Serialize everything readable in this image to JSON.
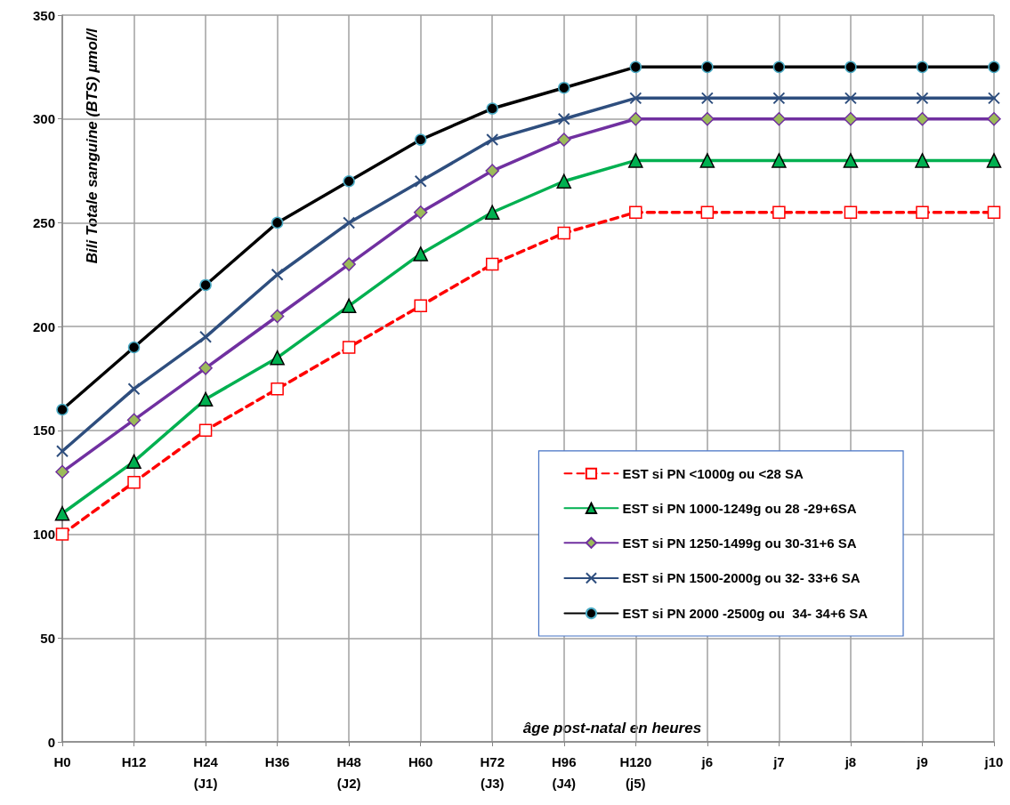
{
  "chart_data": {
    "type": "line",
    "ylabel": "Bili Totale sanguine (BTS) µmol/l",
    "xlabel": "âge post-natal en heures",
    "categories": [
      "H0",
      "H12",
      "H24\n(J1)",
      "H36",
      "H48\n(J2)",
      "H60",
      "H72\n(J3)",
      "H96\n(J4)",
      "H120\n(j5)",
      "j6",
      "j7",
      "j8",
      "j9",
      "j10"
    ],
    "series": [
      {
        "name": "EST si PN <1000g ou <28 SA",
        "color": "#ff0000",
        "marker": "square",
        "line_style": "dashed",
        "values": [
          100,
          125,
          150,
          170,
          190,
          210,
          230,
          245,
          255,
          255,
          255,
          255,
          255,
          255
        ]
      },
      {
        "name": "EST si PN 1000-1249g ou 28 -29+6SA",
        "color": "#00b050",
        "marker": "triangle",
        "line_style": "solid",
        "values": [
          110,
          135,
          165,
          185,
          210,
          235,
          255,
          270,
          280,
          280,
          280,
          280,
          280,
          280
        ]
      },
      {
        "name": "EST si PN 1250-1499g ou 30-31+6 SA",
        "color": "#7030a0",
        "marker": "diamond",
        "line_style": "solid",
        "values": [
          130,
          155,
          180,
          205,
          230,
          255,
          275,
          290,
          300,
          300,
          300,
          300,
          300,
          300
        ]
      },
      {
        "name": "EST si PN 1500-2000g ou 32- 33+6 SA",
        "color": "#2e4e7e",
        "marker": "cross",
        "line_style": "solid",
        "values": [
          140,
          170,
          195,
          225,
          250,
          270,
          290,
          300,
          310,
          310,
          310,
          310,
          310,
          310
        ]
      },
      {
        "name": "EST si PN 2000 -2500g ou  34- 34+6 SA",
        "color": "#000000",
        "marker": "circle",
        "line_style": "solid",
        "values": [
          160,
          190,
          220,
          250,
          270,
          290,
          305,
          315,
          325,
          325,
          325,
          325,
          325,
          325
        ]
      }
    ],
    "ylim": [
      0,
      350
    ],
    "yticks": [
      0,
      50,
      100,
      150,
      200,
      250,
      300,
      350
    ],
    "grid": true,
    "legend": "bottom right"
  }
}
